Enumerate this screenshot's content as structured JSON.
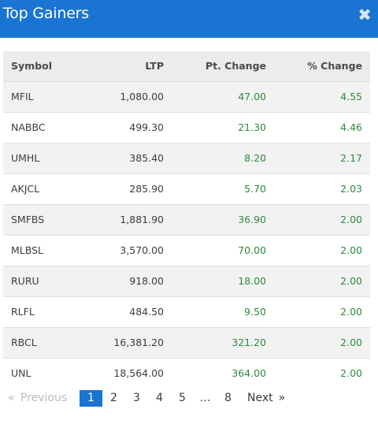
{
  "modal": {
    "title": "Top Gainers",
    "close_symbol": "✖",
    "colors": {
      "header": "#1a74d2",
      "positive": "#2b8a3e",
      "active_page": "#1a74d2"
    }
  },
  "table": {
    "headers": [
      "Symbol",
      "LTP",
      "Pt. Change",
      "% Change"
    ],
    "rows": [
      [
        "MFIL",
        "1,080.00",
        "47.00",
        "4.55"
      ],
      [
        "NABBC",
        "499.30",
        "21.30",
        "4.46"
      ],
      [
        "UMHL",
        "385.40",
        "8.20",
        "2.17"
      ],
      [
        "AKJCL",
        "285.90",
        "5.70",
        "2.03"
      ],
      [
        "SMFBS",
        "1,881.90",
        "36.90",
        "2.00"
      ],
      [
        "MLBSL",
        "3,570.00",
        "70.00",
        "2.00"
      ],
      [
        "RURU",
        "918.00",
        "18.00",
        "2.00"
      ],
      [
        "RLFL",
        "484.50",
        "9.50",
        "2.00"
      ],
      [
        "RBCL",
        "16,381.20",
        "321.20",
        "2.00"
      ],
      [
        "UNL",
        "18,564.00",
        "364.00",
        "2.00"
      ]
    ]
  },
  "pagination": {
    "prev_symbol": "«",
    "prev_label": "Previous",
    "pages": [
      "1",
      "2",
      "3",
      "4",
      "5"
    ],
    "ellipsis": "…",
    "last_page": "8",
    "next_label": "Next",
    "next_symbol": "»",
    "current": "1"
  }
}
